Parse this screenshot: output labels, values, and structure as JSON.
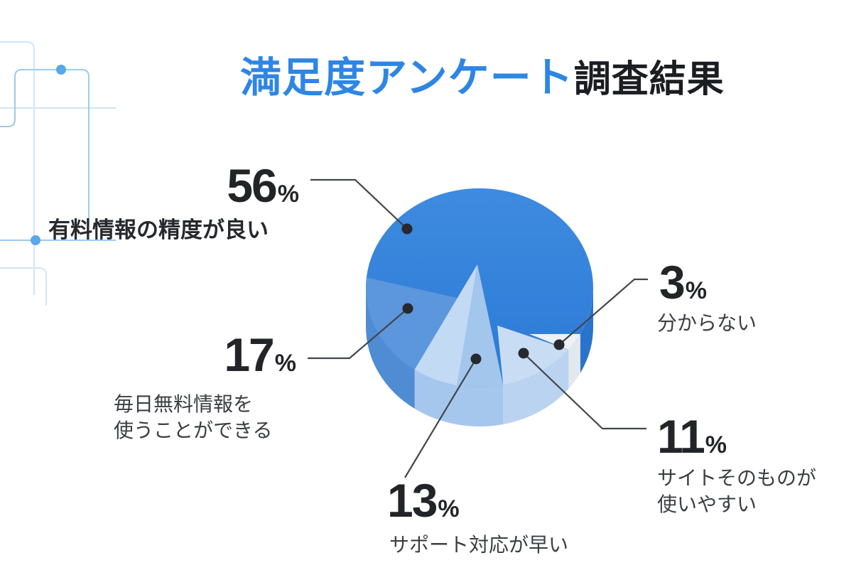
{
  "title": {
    "highlight": "満足度アンケート",
    "rest": "調査結果",
    "highlight_color": "#2e86e4",
    "rest_color": "#1b1d21"
  },
  "chart_data": {
    "type": "pie",
    "style": "3d-cylinder",
    "title": "満足度アンケート調査結果",
    "unit": "%",
    "total": 100,
    "order_clockwise_from_top_right": [
      "56",
      "3",
      "11",
      "13",
      "17"
    ],
    "segments": [
      {
        "id": "56",
        "label": "有料情報の精度が良い",
        "value": 56,
        "color": "#2f80d9",
        "side_color": "#2a73ca"
      },
      {
        "id": "17",
        "label": "毎日無料情報を使うことができる",
        "value": 17,
        "color": "#5c96dc",
        "side_color": "#4f8cd4"
      },
      {
        "id": "13",
        "label": "サポート対応が早い",
        "value": 13,
        "color": "#aecdef",
        "side_color": "#a6c7ed",
        "face_light": "#c3daf4",
        "face_dark": "#a3c6ec"
      },
      {
        "id": "11",
        "label": "サイトそのものが使いやすい",
        "value": 11,
        "color": "#c8dcf4",
        "side_color": "#bad3f0"
      },
      {
        "id": "3",
        "label": "分からない",
        "value": 3,
        "color": "#edf1f5",
        "side_color": "#e2e9ee"
      }
    ],
    "legend_position": "callouts"
  },
  "callouts": [
    {
      "id": "56",
      "value": "56",
      "unit": "%",
      "line1": "有料情報の精度が良い",
      "line2": "",
      "emphasis": true
    },
    {
      "id": "17",
      "value": "17",
      "unit": "%",
      "line1": "毎日無料情報を",
      "line2": "使うことができる",
      "emphasis": false
    },
    {
      "id": "13",
      "value": "13",
      "unit": "%",
      "line1": "サポート対応が早い",
      "line2": "",
      "emphasis": false
    },
    {
      "id": "3",
      "value": "3",
      "unit": "%",
      "line1": "分からない",
      "line2": "",
      "emphasis": false
    },
    {
      "id": "11",
      "value": "11",
      "unit": "%",
      "line1": "サイトそのものが",
      "line2": "使いやすい",
      "emphasis": false
    }
  ],
  "colors": {
    "background": "#ffffff",
    "leader_line": "#42464b",
    "leader_dot": "#26292d",
    "pie_top_gradient_start": "#3e8be0",
    "pie_top_gradient_end": "#2b79d5",
    "decor_faint": "#cfe5f8",
    "decor_bright": "#9ccbf0",
    "decor_dot": "#58a7ea"
  }
}
